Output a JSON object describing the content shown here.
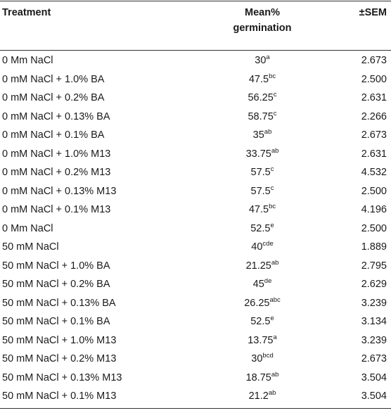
{
  "headers": {
    "treatment": "Treatment",
    "mean_line1": "Mean%",
    "mean_line2": "germination",
    "sem": "±SEM"
  },
  "rows": [
    {
      "treatment": "0 Mm NaCl",
      "mean": "30",
      "sup": "a",
      "sem": "2.673"
    },
    {
      "treatment": "0 mM NaCl + 1.0% BA",
      "mean": "47.5",
      "sup": "bc",
      "sem": "2.500"
    },
    {
      "treatment": "0 mM NaCl + 0.2% BA",
      "mean": "56.25",
      "sup": "c",
      "sem": "2.631"
    },
    {
      "treatment": "0 mM NaCl + 0.13% BA",
      "mean": "58.75",
      "sup": "c",
      "sem": "2.266"
    },
    {
      "treatment": "0 mM NaCl + 0.1% BA",
      "mean": "35",
      "sup": "ab",
      "sem": "2.673"
    },
    {
      "treatment": "0 mM NaCl + 1.0% M13",
      "mean": "33.75",
      "sup": "ab",
      "sem": "2.631"
    },
    {
      "treatment": "0 mM NaCl + 0.2% M13",
      "mean": "57.5",
      "sup": "c",
      "sem": "4.532"
    },
    {
      "treatment": "0 mM NaCl + 0.13% M13",
      "mean": "57.5",
      "sup": "c",
      "sem": "2.500"
    },
    {
      "treatment": "0 mM NaCl + 0.1% M13",
      "mean": "47.5",
      "sup": "bc",
      "sem": "4.196"
    },
    {
      "treatment": "0 Mm NaCl",
      "mean": "52.5",
      "sup": "e",
      "sem": "2.500"
    },
    {
      "treatment": "50 mM NaCl",
      "mean": "40",
      "sup": "cde",
      "sem": "1.889"
    },
    {
      "treatment": "50 mM NaCl + 1.0% BA",
      "mean": "21.25",
      "sup": "ab",
      "sem": "2.795"
    },
    {
      "treatment": "50 mM NaCl + 0.2% BA",
      "mean": "45",
      "sup": "de",
      "sem": "2.629"
    },
    {
      "treatment": "50 mM NaCl + 0.13% BA",
      "mean": "26.25",
      "sup": "abc",
      "sem": "3.239"
    },
    {
      "treatment": "50 mM NaCl + 0.1% BA",
      "mean": "52.5",
      "sup": "e",
      "sem": "3.134"
    },
    {
      "treatment": "50 mM NaCl + 1.0% M13",
      "mean": "13.75",
      "sup": "a",
      "sem": "3.239"
    },
    {
      "treatment": "50 mM NaCl + 0.2% M13",
      "mean": "30",
      "sup": "bcd",
      "sem": "2.673"
    },
    {
      "treatment": "50 mM NaCl + 0.13% M13",
      "mean": "18.75",
      "sup": "ab",
      "sem": "3.504"
    },
    {
      "treatment": "50 mM NaCl + 0.1% M13",
      "mean": "21.2",
      "sup": "ab",
      "sem": "3.504"
    }
  ]
}
